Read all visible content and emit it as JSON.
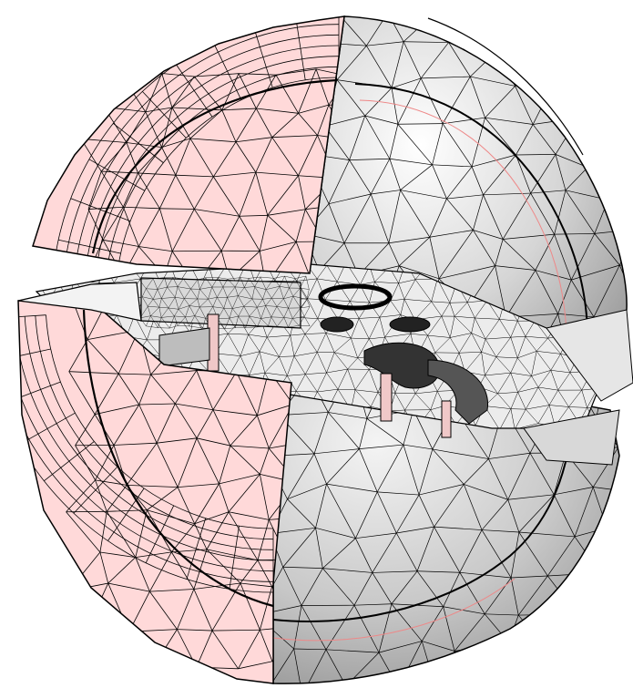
{
  "figure": {
    "kind": "cutaway-mesh-sphere",
    "colors": {
      "cut_face": "#ffd6d6",
      "cut_face_hi": "#ffe6e6",
      "surface_light": "#f2f2f2",
      "surface_mid": "#d0d0d0",
      "surface_dark": "#9a9a9a",
      "mesh_line": "#000000",
      "background": "#ffffff"
    }
  }
}
